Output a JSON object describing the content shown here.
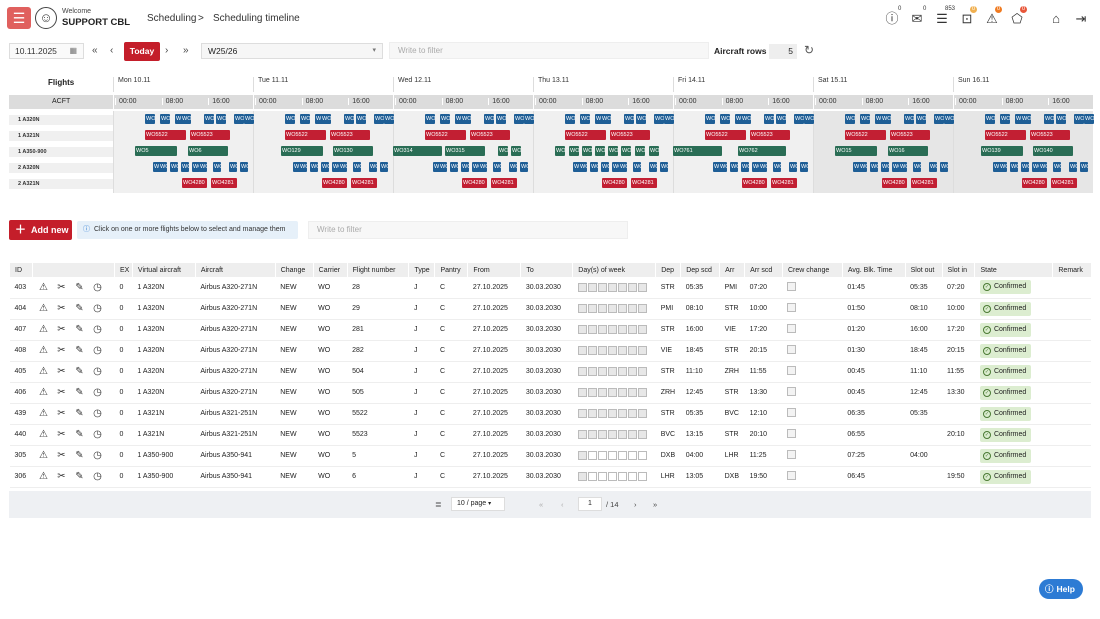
{
  "header": {
    "welcome": "Welcome",
    "user": "SUPPORT CBL",
    "breadcrumb": [
      "Scheduling",
      ">",
      "Scheduling timeline"
    ],
    "badges": [
      "0",
      "0",
      "853",
      "0",
      "0",
      "0"
    ]
  },
  "toolbar": {
    "date": "10.11.2025",
    "today": "Today",
    "season": "W25/26",
    "filter_placeholder": "Write to filter",
    "aircraft_rows_label": "Aircraft rows",
    "aircraft_rows": "5"
  },
  "timeline": {
    "flights_label": "Flights",
    "acft_label": "ACFT",
    "days": [
      "Mon 10.11",
      "Tue 11.11",
      "Wed 12.11",
      "Thu 13.11",
      "Fri 14.11",
      "Sat 15.11",
      "Sun 16.11"
    ],
    "hours": [
      "00:00",
      "08:00",
      "16:00"
    ],
    "rows": [
      "1 A320N",
      "1 A321N",
      "1 A350-900",
      "2 A320N",
      "2 A321N"
    ],
    "small_label": "WO",
    "a321_pair": [
      "WO5522",
      "WO5523"
    ],
    "a321_pair2": [
      "WO4280",
      "WO4281"
    ],
    "a350_pairs": [
      [
        "WO5",
        "WO6"
      ],
      [
        "WO129",
        "WO130"
      ],
      [
        "WO314",
        "WO315"
      ],
      [
        "WO",
        ""
      ],
      [
        "WO761",
        "WO762"
      ],
      [
        "WO15",
        "WO16"
      ],
      [
        "WO139",
        "WO140"
      ]
    ]
  },
  "actions": {
    "add_new": "Add new",
    "info": "Click on one or more flights below to select and manage them",
    "filter_placeholder": "Write to filter"
  },
  "table": {
    "columns": [
      "ID",
      "",
      "EX",
      "Virtual aircraft",
      "Aircraft",
      "Change",
      "Carrier",
      "Flight number",
      "Type",
      "Pantry",
      "From",
      "To",
      "Day(s) of week",
      "Dep",
      "Dep scd",
      "Arr",
      "Arr scd",
      "Crew change",
      "Avg. Blk. Time",
      "Slot out",
      "Slot in",
      "State",
      "Remark"
    ],
    "rows": [
      {
        "id": "403",
        "ex": "0",
        "va": "1 A320N",
        "ac": "Airbus A320-271N",
        "chg": "NEW",
        "car": "WO",
        "fn": "28",
        "type": "J",
        "pan": "C",
        "from": "27.10.2025",
        "to": "30.03.2030",
        "dep": "STR",
        "depscd": "05:35",
        "arr": "PMI",
        "arrscd": "07:20",
        "blk": "01:45",
        "so": "05:35",
        "si": "07:20",
        "state": "Confirmed"
      },
      {
        "id": "404",
        "ex": "0",
        "va": "1 A320N",
        "ac": "Airbus A320-271N",
        "chg": "NEW",
        "car": "WO",
        "fn": "29",
        "type": "J",
        "pan": "C",
        "from": "27.10.2025",
        "to": "30.03.2030",
        "dep": "PMI",
        "depscd": "08:10",
        "arr": "STR",
        "arrscd": "10:00",
        "blk": "01:50",
        "so": "08:10",
        "si": "10:00",
        "state": "Confirmed"
      },
      {
        "id": "407",
        "ex": "0",
        "va": "1 A320N",
        "ac": "Airbus A320-271N",
        "chg": "NEW",
        "car": "WO",
        "fn": "281",
        "type": "J",
        "pan": "C",
        "from": "27.10.2025",
        "to": "30.03.2030",
        "dep": "STR",
        "depscd": "16:00",
        "arr": "VIE",
        "arrscd": "17:20",
        "blk": "01:20",
        "so": "16:00",
        "si": "17:20",
        "state": "Confirmed"
      },
      {
        "id": "408",
        "ex": "0",
        "va": "1 A320N",
        "ac": "Airbus A320-271N",
        "chg": "NEW",
        "car": "WO",
        "fn": "282",
        "type": "J",
        "pan": "C",
        "from": "27.10.2025",
        "to": "30.03.2030",
        "dep": "VIE",
        "depscd": "18:45",
        "arr": "STR",
        "arrscd": "20:15",
        "blk": "01:30",
        "so": "18:45",
        "si": "20:15",
        "state": "Confirmed"
      },
      {
        "id": "405",
        "ex": "0",
        "va": "1 A320N",
        "ac": "Airbus A320-271N",
        "chg": "NEW",
        "car": "WO",
        "fn": "504",
        "type": "J",
        "pan": "C",
        "from": "27.10.2025",
        "to": "30.03.2030",
        "dep": "STR",
        "depscd": "11:10",
        "arr": "ZRH",
        "arrscd": "11:55",
        "blk": "00:45",
        "so": "11:10",
        "si": "11:55",
        "state": "Confirmed"
      },
      {
        "id": "406",
        "ex": "0",
        "va": "1 A320N",
        "ac": "Airbus A320-271N",
        "chg": "NEW",
        "car": "WO",
        "fn": "505",
        "type": "J",
        "pan": "C",
        "from": "27.10.2025",
        "to": "30.03.2030",
        "dep": "ZRH",
        "depscd": "12:45",
        "arr": "STR",
        "arrscd": "13:30",
        "blk": "00:45",
        "so": "12:45",
        "si": "13:30",
        "state": "Confirmed"
      },
      {
        "id": "439",
        "ex": "0",
        "va": "1 A321N",
        "ac": "Airbus A321-251N",
        "chg": "NEW",
        "car": "WO",
        "fn": "5522",
        "type": "J",
        "pan": "C",
        "from": "27.10.2025",
        "to": "30.03.2030",
        "dep": "STR",
        "depscd": "05:35",
        "arr": "BVC",
        "arrscd": "12:10",
        "blk": "06:35",
        "so": "05:35",
        "si": "",
        "state": "Confirmed"
      },
      {
        "id": "440",
        "ex": "0",
        "va": "1 A321N",
        "ac": "Airbus A321-251N",
        "chg": "NEW",
        "car": "WO",
        "fn": "5523",
        "type": "J",
        "pan": "C",
        "from": "27.10.2025",
        "to": "30.03.2030",
        "dep": "BVC",
        "depscd": "13:15",
        "arr": "STR",
        "arrscd": "20:10",
        "blk": "06:55",
        "so": "",
        "si": "20:10",
        "state": "Confirmed"
      },
      {
        "id": "305",
        "ex": "0",
        "va": "1 A350-900",
        "ac": "Airbus A350-941",
        "chg": "NEW",
        "car": "WO",
        "fn": "5",
        "type": "J",
        "pan": "C",
        "from": "27.10.2025",
        "to": "30.03.2030",
        "dep": "DXB",
        "depscd": "04:00",
        "arr": "LHR",
        "arrscd": "11:25",
        "blk": "07:25",
        "so": "04:00",
        "si": "",
        "state": "Confirmed"
      },
      {
        "id": "306",
        "ex": "0",
        "va": "1 A350-900",
        "ac": "Airbus A350-941",
        "chg": "NEW",
        "car": "WO",
        "fn": "6",
        "type": "J",
        "pan": "C",
        "from": "27.10.2025",
        "to": "30.03.2030",
        "dep": "LHR",
        "depscd": "13:05",
        "arr": "DXB",
        "arrscd": "19:50",
        "blk": "06:45",
        "so": "",
        "si": "19:50",
        "state": "Confirmed"
      }
    ]
  },
  "pager": {
    "per_page": "10 / page",
    "page": "1",
    "total": "/ 14"
  },
  "help": "Help"
}
